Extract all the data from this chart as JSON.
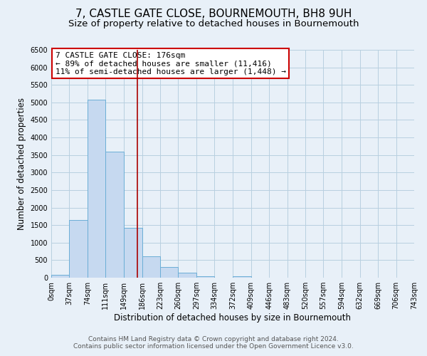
{
  "title": "7, CASTLE GATE CLOSE, BOURNEMOUTH, BH8 9UH",
  "subtitle": "Size of property relative to detached houses in Bournemouth",
  "xlabel": "Distribution of detached houses by size in Bournemouth",
  "ylabel": "Number of detached properties",
  "bin_edges": [
    0,
    37,
    74,
    111,
    149,
    186,
    223,
    260,
    297,
    334,
    372,
    409,
    446,
    483,
    520,
    557,
    594,
    632,
    669,
    706,
    743
  ],
  "bin_labels": [
    "0sqm",
    "37sqm",
    "74sqm",
    "111sqm",
    "149sqm",
    "186sqm",
    "223sqm",
    "260sqm",
    "297sqm",
    "334sqm",
    "372sqm",
    "409sqm",
    "446sqm",
    "483sqm",
    "520sqm",
    "557sqm",
    "594sqm",
    "632sqm",
    "669sqm",
    "706sqm",
    "743sqm"
  ],
  "bar_heights": [
    75,
    1650,
    5075,
    3600,
    1430,
    610,
    300,
    145,
    50,
    0,
    50,
    0,
    0,
    0,
    0,
    0,
    0,
    0,
    0,
    0
  ],
  "bar_color": "#c6d9f0",
  "bar_edge_color": "#6baed6",
  "bar_edge_width": 0.7,
  "vline_x": 176,
  "vline_color": "#aa0000",
  "ylim": [
    0,
    6500
  ],
  "yticks": [
    0,
    500,
    1000,
    1500,
    2000,
    2500,
    3000,
    3500,
    4000,
    4500,
    5000,
    5500,
    6000,
    6500
  ],
  "grid_color": "#b8cfe0",
  "background_color": "#e8f0f8",
  "plot_bg_color": "#e8f0f8",
  "annotation_text": "7 CASTLE GATE CLOSE: 176sqm\n← 89% of detached houses are smaller (11,416)\n11% of semi-detached houses are larger (1,448) →",
  "annotation_box_color": "#ffffff",
  "annotation_box_edge": "#cc0000",
  "footer_line1": "Contains HM Land Registry data © Crown copyright and database right 2024.",
  "footer_line2": "Contains public sector information licensed under the Open Government Licence v3.0.",
  "title_fontsize": 11,
  "subtitle_fontsize": 9.5,
  "label_fontsize": 8.5,
  "tick_fontsize": 7,
  "annotation_fontsize": 8,
  "footer_fontsize": 6.5
}
